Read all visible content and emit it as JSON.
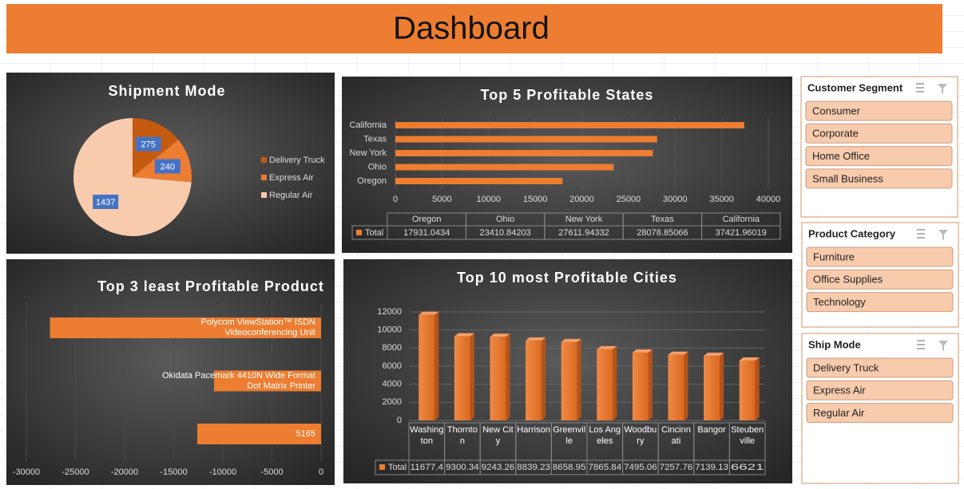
{
  "title": "Dashboard",
  "chart_data": [
    {
      "type": "pie",
      "title": "Shipment Mode",
      "categories": [
        "Delivery Truck",
        "Express Air",
        "Regular Air"
      ],
      "values": [
        275,
        240,
        1437
      ],
      "colors": [
        "#c55a11",
        "#ed7d31",
        "#f8cbad"
      ]
    },
    {
      "type": "hbar",
      "title": "Top 5 Profitable States",
      "categories": [
        "Oregon",
        "Ohio",
        "New York",
        "Texas",
        "California"
      ],
      "series": [
        {
          "name": "Total",
          "color": "#ed7d31",
          "values": [
            17931.0434,
            23410.84203,
            27611.94332,
            28078.85066,
            37421.96019
          ]
        }
      ],
      "xlim": [
        0,
        40000
      ],
      "xticks": [
        0,
        5000,
        10000,
        15000,
        20000,
        25000,
        30000,
        35000,
        40000
      ],
      "grid": true
    },
    {
      "type": "hbar",
      "title": "Top 3 least Profitable Product",
      "categories": [
        "Polycom ViewStation™ ISDN Videoconferencing Unit",
        "Okidata Pacemark 4410N Wide Format Dot Matrix Printer",
        "5165"
      ],
      "values": [
        -27600,
        -10900,
        -12600
      ],
      "color": "#ed7d31",
      "xlim": [
        -30000,
        0
      ],
      "xticks": [
        -30000,
        -25000,
        -20000,
        -15000,
        -10000,
        -5000,
        0
      ],
      "grid": true
    },
    {
      "type": "column",
      "title": "Top 10 most Profitable Cities",
      "categories": [
        "Washington",
        "Thornton",
        "New City",
        "Harrison",
        "Greenville",
        "Los Angeles",
        "Woodbury",
        "Cincinnati",
        "Bangor",
        "Steubenville"
      ],
      "series": [
        {
          "name": "Total",
          "color": "#ed7d31",
          "values": [
            11677.4,
            9300.34,
            9243.26,
            8839.23,
            8658.95,
            7865.84,
            7495.06,
            7257.76,
            7139.13,
            6621
          ]
        }
      ],
      "ylim": [
        0,
        12000
      ],
      "yticks": [
        0,
        2000,
        4000,
        6000,
        8000,
        10000,
        12000
      ],
      "grid": true
    }
  ],
  "slicers": [
    {
      "title": "Customer Segment",
      "items": [
        "Consumer",
        "Corporate",
        "Home Office",
        "Small Business"
      ]
    },
    {
      "title": "Product Category",
      "items": [
        "Furniture",
        "Office Supplies",
        "Technology"
      ]
    },
    {
      "title": "Ship Mode",
      "items": [
        "Delivery Truck",
        "Express Air",
        "Regular Air"
      ]
    }
  ]
}
